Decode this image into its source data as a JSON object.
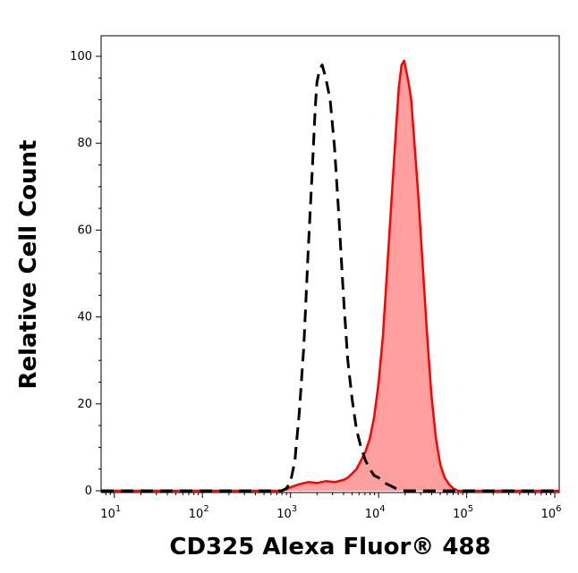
{
  "chart_data": {
    "type": "area",
    "xlabel": "CD325 Alexa Fluor® 488",
    "ylabel": "Relative Cell Count",
    "x_scale": "log",
    "xlim": [
      0.85,
      6.05
    ],
    "ylim": [
      0,
      100
    ],
    "x_ticks": [
      {
        "base": "10",
        "exp": "1",
        "value": 1
      },
      {
        "base": "10",
        "exp": "2",
        "value": 2
      },
      {
        "base": "10",
        "exp": "3",
        "value": 3
      },
      {
        "base": "10",
        "exp": "4",
        "value": 4
      },
      {
        "base": "10",
        "exp": "5",
        "value": 5
      },
      {
        "base": "10",
        "exp": "6",
        "value": 6
      }
    ],
    "y_ticks": [
      "0",
      "20",
      "40",
      "60",
      "80",
      "100"
    ],
    "y_tick_values": [
      0,
      20,
      40,
      60,
      80,
      100
    ],
    "grid": false,
    "legend": "none",
    "series": [
      {
        "style": "dashed",
        "color": "#000000",
        "fill": "none",
        "x": [
          0.85,
          2.9,
          2.95,
          3.0,
          3.05,
          3.1,
          3.15,
          3.2,
          3.25,
          3.28,
          3.3,
          3.33,
          3.36,
          3.4,
          3.45,
          3.5,
          3.55,
          3.6,
          3.65,
          3.7,
          3.75,
          3.8,
          3.85,
          3.9,
          3.95,
          4.0,
          4.05,
          4.1,
          4.15,
          4.2,
          4.3,
          6.05
        ],
        "y": [
          0,
          0,
          0.5,
          2,
          7,
          18,
          33,
          55,
          75,
          88,
          94,
          97,
          98,
          95,
          90,
          79,
          63,
          45,
          30,
          21,
          14,
          10,
          7,
          5,
          3.5,
          3,
          2,
          1.5,
          1,
          0.5,
          0,
          0
        ]
      },
      {
        "style": "solid",
        "color": "#ff0000",
        "fill": "#ff9f9f",
        "x": [
          0.85,
          2.9,
          2.95,
          3.0,
          3.1,
          3.2,
          3.3,
          3.4,
          3.5,
          3.6,
          3.65,
          3.7,
          3.75,
          3.8,
          3.85,
          3.9,
          3.95,
          4.0,
          4.05,
          4.1,
          4.15,
          4.2,
          4.23,
          4.26,
          4.29,
          4.31,
          4.34,
          4.37,
          4.4,
          4.45,
          4.5,
          4.55,
          4.6,
          4.65,
          4.7,
          4.75,
          4.8,
          4.85,
          4.9,
          6.05
        ],
        "y": [
          0,
          0,
          0.3,
          0.8,
          1.5,
          2,
          1.8,
          2.2,
          2,
          2.5,
          3,
          4,
          5,
          7,
          9,
          12,
          17,
          25,
          36,
          52,
          68,
          84,
          93,
          98,
          99,
          97,
          94,
          90,
          82,
          68,
          52,
          36,
          22,
          12,
          6,
          3,
          1.5,
          0.5,
          0,
          0
        ]
      }
    ]
  }
}
